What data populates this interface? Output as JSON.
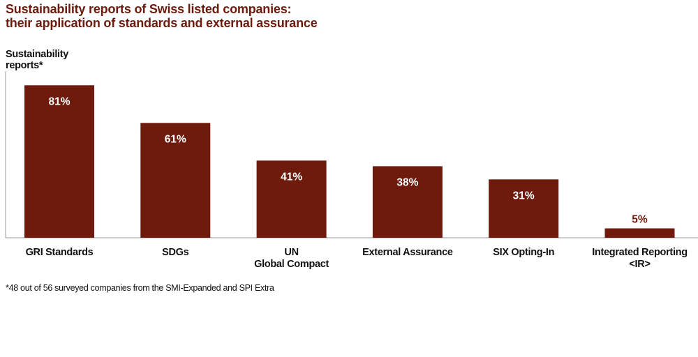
{
  "chart_data": {
    "type": "bar",
    "title": "Sustainability reports of Swiss listed companies: their application of standards and external assurance",
    "title_lines": [
      "Sustainability reports of Swiss listed companies:",
      "their application of standards and external assurance"
    ],
    "ylabel": "Sustainability reports*",
    "ylabel_lines": [
      "Sustainability",
      "reports*"
    ],
    "categories": [
      "GRI Standards",
      "SDGs",
      "UN Global Compact",
      "External Assurance",
      "SIX Opting-In",
      "Integrated Reporting <IR>"
    ],
    "category_lines": [
      [
        "GRI Standards"
      ],
      [
        "SDGs"
      ],
      [
        "UN",
        "Global Compact"
      ],
      [
        "External Assurance"
      ],
      [
        "SIX Opting-In"
      ],
      [
        "Integrated Reporting",
        "<IR>"
      ]
    ],
    "values": [
      81,
      61,
      41,
      38,
      31,
      5
    ],
    "value_labels": [
      "81%",
      "61%",
      "41%",
      "38%",
      "31%",
      "5%"
    ],
    "unit": "%",
    "ylim": [
      0,
      100
    ],
    "grid": false,
    "footnote": "*48 out of 56 surveyed companies from the SMI-Expanded and SPI Extra",
    "colors": {
      "bar": "#6e1a0c",
      "title": "#6e1a0c",
      "text": "#111111",
      "axis": "#999999"
    }
  }
}
